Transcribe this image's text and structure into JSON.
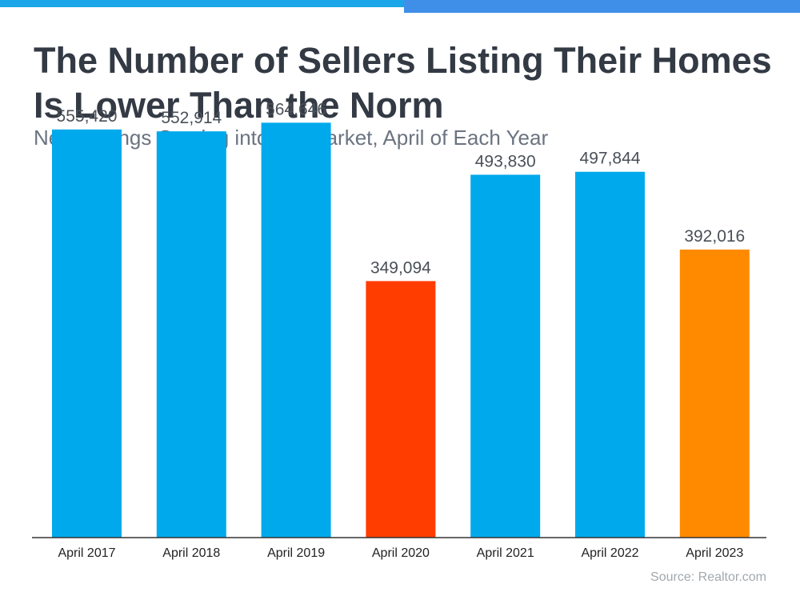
{
  "header": {
    "title_line1": "The Number of Sellers Listing Their Homes",
    "title_line2": "Is Lower Than the Norm",
    "subtitle": "New Listings Coming into the Market, April of Each Year"
  },
  "source": "Source: Realtor.com",
  "colors": {
    "title": "#333a44",
    "subtitle": "#6b7480",
    "top_bar_left": "#1aa6e8",
    "top_bar_right": "#3f8fe8",
    "bar_blue": "#00a9ec",
    "bar_red": "#ff3d00",
    "bar_orange": "#ff8a00",
    "label": "#4a5058",
    "axis": "#333333"
  },
  "chart_data": {
    "type": "bar",
    "title": "The Number of Sellers Listing Their Homes Is Lower Than the Norm",
    "subtitle": "New Listings Coming into the Market, April of Each Year",
    "categories": [
      "April 2017",
      "April 2018",
      "April 2019",
      "April 2020",
      "April 2021",
      "April 2022",
      "April 2023"
    ],
    "values": [
      555420,
      552914,
      564646,
      349094,
      493830,
      497844,
      392016
    ],
    "data_labels": [
      "555,420",
      "552,914",
      "564,646",
      "349,094",
      "493,830",
      "497,844",
      "392,016"
    ],
    "bar_colors": [
      "#00a9ec",
      "#00a9ec",
      "#00a9ec",
      "#ff3d00",
      "#00a9ec",
      "#00a9ec",
      "#ff8a00"
    ],
    "xlabel": "",
    "ylabel": "",
    "ylim": [
      0,
      650000
    ],
    "grid": false,
    "legend": "none"
  }
}
